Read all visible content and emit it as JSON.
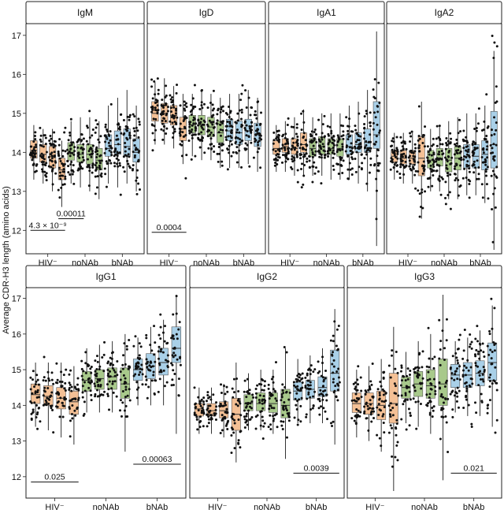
{
  "chart_data": {
    "type": "box",
    "ylabel": "Average CDR-H3 length (amino acids)",
    "xlabel": "",
    "group_labels": [
      "HIV⁻",
      "noNAb",
      "bNAb"
    ],
    "group_colors": {
      "HIV-": "#f4c095",
      "noNAb": "#a8c98b",
      "bNAb": "#a9d0e8"
    },
    "boxes_per_group": 4,
    "rows": [
      {
        "ylim": [
          11.4,
          17.3
        ],
        "yticks": [
          12,
          13,
          14,
          15,
          16,
          17
        ],
        "panels": [
          {
            "title": "IgM",
            "boxes": [
              {
                "q1": 13.85,
                "med": 14.05,
                "q3": 14.3,
                "lo": 13.3,
                "hi": 14.7
              },
              {
                "q1": 13.75,
                "med": 13.95,
                "q3": 14.2,
                "lo": 13.2,
                "hi": 14.6
              },
              {
                "q1": 13.6,
                "med": 13.9,
                "q3": 14.15,
                "lo": 13.0,
                "hi": 14.6
              },
              {
                "q1": 13.3,
                "med": 13.55,
                "q3": 13.85,
                "lo": 12.6,
                "hi": 14.3
              },
              {
                "q1": 13.8,
                "med": 14.0,
                "q3": 14.25,
                "lo": 13.2,
                "hi": 14.8
              },
              {
                "q1": 13.75,
                "med": 13.95,
                "q3": 14.2,
                "lo": 13.1,
                "hi": 14.9
              },
              {
                "q1": 13.7,
                "med": 13.95,
                "q3": 14.2,
                "lo": 13.0,
                "hi": 14.9
              },
              {
                "q1": 13.55,
                "med": 13.8,
                "q3": 14.1,
                "lo": 12.8,
                "hi": 14.8
              },
              {
                "q1": 13.9,
                "med": 14.1,
                "q3": 14.45,
                "lo": 13.2,
                "hi": 15.2
              },
              {
                "q1": 13.95,
                "med": 14.2,
                "q3": 14.55,
                "lo": 13.1,
                "hi": 15.4
              },
              {
                "q1": 13.9,
                "med": 14.15,
                "q3": 14.6,
                "lo": 13.2,
                "hi": 15.6
              },
              {
                "q1": 13.75,
                "med": 14.0,
                "q3": 14.35,
                "lo": 13.0,
                "hi": 15.2
              }
            ],
            "pvalues": [
              {
                "label": "4.3 × 10⁻⁹",
                "from_box": 1,
                "to_box": 4,
                "y": 12.0
              },
              {
                "label": "0.00011",
                "from_box": 4,
                "to_box": 6,
                "y": 12.3
              }
            ]
          },
          {
            "title": "IgD",
            "boxes": [
              {
                "q1": 14.8,
                "med": 15.0,
                "q3": 15.3,
                "lo": 14.2,
                "hi": 15.8
              },
              {
                "q1": 14.75,
                "med": 15.0,
                "q3": 15.25,
                "lo": 14.2,
                "hi": 15.9
              },
              {
                "q1": 14.7,
                "med": 14.95,
                "q3": 15.2,
                "lo": 14.1,
                "hi": 15.7
              },
              {
                "q1": 14.3,
                "med": 14.6,
                "q3": 14.9,
                "lo": 13.7,
                "hi": 15.5
              },
              {
                "q1": 14.5,
                "med": 14.7,
                "q3": 14.95,
                "lo": 13.9,
                "hi": 15.5
              },
              {
                "q1": 14.45,
                "med": 14.7,
                "q3": 14.95,
                "lo": 13.8,
                "hi": 15.6
              },
              {
                "q1": 14.4,
                "med": 14.65,
                "q3": 14.9,
                "lo": 13.8,
                "hi": 15.5
              },
              {
                "q1": 14.25,
                "med": 14.5,
                "q3": 14.8,
                "lo": 13.6,
                "hi": 15.4
              },
              {
                "q1": 14.3,
                "med": 14.55,
                "q3": 14.85,
                "lo": 13.6,
                "hi": 15.5
              },
              {
                "q1": 14.2,
                "med": 14.5,
                "q3": 14.8,
                "lo": 13.6,
                "hi": 15.5
              },
              {
                "q1": 14.3,
                "med": 14.55,
                "q3": 14.85,
                "lo": 13.7,
                "hi": 15.6
              },
              {
                "q1": 14.15,
                "med": 14.45,
                "q3": 14.75,
                "lo": 13.5,
                "hi": 15.4
              }
            ],
            "pvalues": [
              {
                "label": "0.0004",
                "from_box": 1,
                "to_box": 4,
                "y": 11.95
              }
            ]
          },
          {
            "title": "IgA1",
            "boxes": [
              {
                "q1": 13.95,
                "med": 14.1,
                "q3": 14.3,
                "lo": 13.5,
                "hi": 14.7
              },
              {
                "q1": 14.0,
                "med": 14.15,
                "q3": 14.35,
                "lo": 13.5,
                "hi": 14.8
              },
              {
                "q1": 13.95,
                "med": 14.1,
                "q3": 14.35,
                "lo": 13.4,
                "hi": 14.9
              },
              {
                "q1": 14.0,
                "med": 14.2,
                "q3": 14.5,
                "lo": 13.4,
                "hi": 15.1
              },
              {
                "q1": 13.9,
                "med": 14.1,
                "q3": 14.35,
                "lo": 13.4,
                "hi": 14.9
              },
              {
                "q1": 13.95,
                "med": 14.15,
                "q3": 14.4,
                "lo": 13.4,
                "hi": 15.0
              },
              {
                "q1": 13.95,
                "med": 14.1,
                "q3": 14.35,
                "lo": 13.3,
                "hi": 15.0
              },
              {
                "q1": 13.9,
                "med": 14.1,
                "q3": 14.35,
                "lo": 13.3,
                "hi": 15.0
              },
              {
                "q1": 13.95,
                "med": 14.15,
                "q3": 14.45,
                "lo": 13.3,
                "hi": 15.2
              },
              {
                "q1": 14.0,
                "med": 14.2,
                "q3": 14.5,
                "lo": 13.2,
                "hi": 15.3
              },
              {
                "q1": 14.0,
                "med": 14.25,
                "q3": 14.6,
                "lo": 13.0,
                "hi": 15.6
              },
              {
                "q1": 14.1,
                "med": 14.45,
                "q3": 15.3,
                "lo": 11.6,
                "hi": 17.1
              }
            ],
            "pvalues": []
          },
          {
            "title": "IgA2",
            "boxes": [
              {
                "q1": 13.75,
                "med": 13.9,
                "q3": 14.05,
                "lo": 13.3,
                "hi": 14.5
              },
              {
                "q1": 13.7,
                "med": 13.85,
                "q3": 14.05,
                "lo": 13.2,
                "hi": 14.5
              },
              {
                "q1": 13.7,
                "med": 13.85,
                "q3": 14.05,
                "lo": 13.2,
                "hi": 14.5
              },
              {
                "q1": 13.4,
                "med": 13.85,
                "q3": 14.4,
                "lo": 12.3,
                "hi": 15.3
              },
              {
                "q1": 13.6,
                "med": 13.8,
                "q3": 14.05,
                "lo": 13.0,
                "hi": 14.6
              },
              {
                "q1": 13.65,
                "med": 13.85,
                "q3": 14.1,
                "lo": 13.0,
                "hi": 14.7
              },
              {
                "q1": 13.5,
                "med": 13.8,
                "q3": 14.1,
                "lo": 12.8,
                "hi": 14.8
              },
              {
                "q1": 13.55,
                "med": 13.85,
                "q3": 14.15,
                "lo": 12.8,
                "hi": 14.9
              },
              {
                "q1": 13.6,
                "med": 13.9,
                "q3": 14.2,
                "lo": 12.9,
                "hi": 15.0
              },
              {
                "q1": 13.6,
                "med": 13.9,
                "q3": 14.2,
                "lo": 12.9,
                "hi": 15.0
              },
              {
                "q1": 13.55,
                "med": 13.95,
                "q3": 14.3,
                "lo": 12.7,
                "hi": 15.2
              },
              {
                "q1": 13.6,
                "med": 14.2,
                "q3": 15.05,
                "lo": 11.5,
                "hi": 16.6
              }
            ],
            "pvalues": []
          }
        ]
      },
      {
        "ylim": [
          11.4,
          17.3
        ],
        "yticks": [
          12,
          13,
          14,
          15,
          16,
          17
        ],
        "panels": [
          {
            "title": "IgG1",
            "boxes": [
              {
                "q1": 14.05,
                "med": 14.3,
                "q3": 14.6,
                "lo": 13.4,
                "hi": 15.2
              },
              {
                "q1": 14.0,
                "med": 14.25,
                "q3": 14.55,
                "lo": 13.3,
                "hi": 15.2
              },
              {
                "q1": 13.9,
                "med": 14.2,
                "q3": 14.5,
                "lo": 13.1,
                "hi": 15.2
              },
              {
                "q1": 13.75,
                "med": 14.1,
                "q3": 14.4,
                "lo": 12.9,
                "hi": 15.1
              },
              {
                "q1": 14.4,
                "med": 14.7,
                "q3": 14.95,
                "lo": 13.8,
                "hi": 15.6
              },
              {
                "q1": 14.45,
                "med": 14.75,
                "q3": 15.0,
                "lo": 13.8,
                "hi": 15.7
              },
              {
                "q1": 14.45,
                "med": 14.8,
                "q3": 15.05,
                "lo": 13.8,
                "hi": 15.8
              },
              {
                "q1": 14.2,
                "med": 14.6,
                "q3": 15.05,
                "lo": 12.7,
                "hi": 16.0
              },
              {
                "q1": 14.7,
                "med": 15.0,
                "q3": 15.3,
                "lo": 14.0,
                "hi": 15.9
              },
              {
                "q1": 14.75,
                "med": 15.1,
                "q3": 15.45,
                "lo": 14.0,
                "hi": 16.2
              },
              {
                "q1": 14.85,
                "med": 15.2,
                "q3": 15.6,
                "lo": 14.0,
                "hi": 16.4
              },
              {
                "q1": 15.2,
                "med": 15.6,
                "q3": 16.2,
                "lo": 13.2,
                "hi": 17.1
              }
            ],
            "pvalues": [
              {
                "label": "0.025",
                "from_box": 1,
                "to_box": 4,
                "y": 11.85
              },
              {
                "label": "0.00063",
                "from_box": 9,
                "to_box": 12,
                "y": 12.35
              }
            ]
          },
          {
            "title": "IgG2",
            "boxes": [
              {
                "q1": 13.7,
                "med": 13.9,
                "q3": 14.05,
                "lo": 13.2,
                "hi": 14.5
              },
              {
                "q1": 13.7,
                "med": 13.85,
                "q3": 14.05,
                "lo": 13.2,
                "hi": 14.5
              },
              {
                "q1": 13.65,
                "med": 13.85,
                "q3": 14.1,
                "lo": 13.1,
                "hi": 14.6
              },
              {
                "q1": 13.3,
                "med": 13.75,
                "q3": 14.2,
                "lo": 12.4,
                "hi": 15.2
              },
              {
                "q1": 13.85,
                "med": 14.05,
                "q3": 14.3,
                "lo": 13.3,
                "hi": 14.9
              },
              {
                "q1": 13.85,
                "med": 14.05,
                "q3": 14.35,
                "lo": 13.3,
                "hi": 15.0
              },
              {
                "q1": 13.8,
                "med": 14.05,
                "q3": 14.35,
                "lo": 13.2,
                "hi": 15.0
              },
              {
                "q1": 13.65,
                "med": 14.0,
                "q3": 14.45,
                "lo": 12.5,
                "hi": 15.6
              },
              {
                "q1": 14.15,
                "med": 14.4,
                "q3": 14.65,
                "lo": 13.5,
                "hi": 15.3
              },
              {
                "q1": 14.2,
                "med": 14.45,
                "q3": 14.7,
                "lo": 13.5,
                "hi": 15.4
              },
              {
                "q1": 14.25,
                "med": 14.5,
                "q3": 14.8,
                "lo": 13.5,
                "hi": 15.6
              },
              {
                "q1": 14.4,
                "med": 14.9,
                "q3": 15.55,
                "lo": 12.9,
                "hi": 16.7
              }
            ],
            "pvalues": [
              {
                "label": "0.0039",
                "from_box": 9,
                "to_box": 12,
                "y": 12.1
              }
            ]
          },
          {
            "title": "IgG3",
            "boxes": [
              {
                "q1": 13.8,
                "med": 14.05,
                "q3": 14.35,
                "lo": 13.1,
                "hi": 15.0
              },
              {
                "q1": 13.75,
                "med": 14.05,
                "q3": 14.35,
                "lo": 13.0,
                "hi": 15.1
              },
              {
                "q1": 13.6,
                "med": 14.0,
                "q3": 14.4,
                "lo": 12.7,
                "hi": 15.3
              },
              {
                "q1": 13.5,
                "med": 14.05,
                "q3": 14.9,
                "lo": 11.6,
                "hi": 16.2
              },
              {
                "q1": 14.2,
                "med": 14.5,
                "q3": 14.8,
                "lo": 13.5,
                "hi": 15.5
              },
              {
                "q1": 14.25,
                "med": 14.6,
                "q3": 14.95,
                "lo": 13.4,
                "hi": 15.8
              },
              {
                "q1": 14.2,
                "med": 14.55,
                "q3": 15.0,
                "lo": 13.2,
                "hi": 16.0
              },
              {
                "q1": 14.0,
                "med": 14.6,
                "q3": 15.3,
                "lo": 11.9,
                "hi": 17.1
              },
              {
                "q1": 14.5,
                "med": 14.85,
                "q3": 15.15,
                "lo": 13.8,
                "hi": 15.8
              },
              {
                "q1": 14.5,
                "med": 14.85,
                "q3": 15.2,
                "lo": 13.7,
                "hi": 15.9
              },
              {
                "q1": 14.55,
                "med": 14.9,
                "q3": 15.25,
                "lo": 13.7,
                "hi": 16.1
              },
              {
                "q1": 14.7,
                "med": 15.2,
                "q3": 15.75,
                "lo": 13.4,
                "hi": 16.8
              }
            ],
            "pvalues": [
              {
                "label": "0.021",
                "from_box": 9,
                "to_box": 12,
                "y": 12.1
              }
            ]
          }
        ]
      }
    ]
  }
}
